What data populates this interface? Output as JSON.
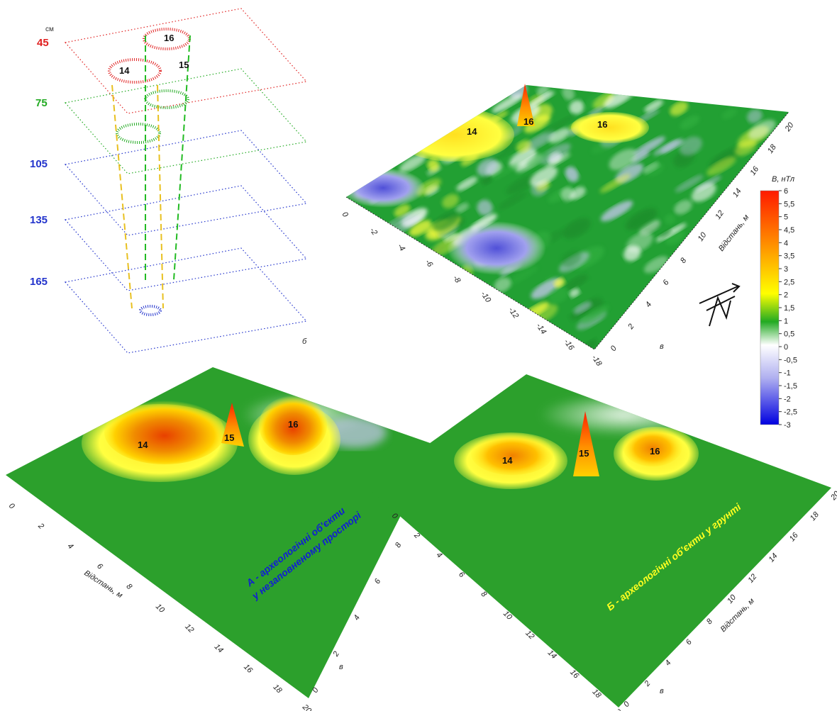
{
  "slices": {
    "unit": "см",
    "depths": [
      {
        "label": "45",
        "color": "#e02020"
      },
      {
        "label": "75",
        "color": "#22aa22"
      },
      {
        "label": "105",
        "color": "#2233cc"
      },
      {
        "label": "135",
        "color": "#2233cc"
      },
      {
        "label": "165",
        "color": "#2233cc"
      }
    ],
    "objects": [
      "14",
      "15",
      "16"
    ],
    "axis_letter": "б"
  },
  "field_surface": {
    "peaks": [
      "14",
      "16",
      "16"
    ],
    "x_ticks": [
      "0",
      "-2",
      "-4",
      "-6",
      "-8",
      "-10",
      "-12",
      "-14",
      "-16",
      "-18"
    ],
    "y_ticks": [
      "0",
      "2",
      "4",
      "6",
      "8",
      "10",
      "12",
      "14",
      "16",
      "18",
      "20"
    ],
    "y_axis_label": "Відстань, м",
    "axis_letter": "в"
  },
  "colorbar": {
    "title": "B, нТл",
    "ticks": [
      "6",
      "5,5",
      "5",
      "4,5",
      "4",
      "3,5",
      "3",
      "2,5",
      "2",
      "1,5",
      "1",
      "0,5",
      "0",
      "-0,5",
      "-1",
      "-1,5",
      "-2",
      "-2,5",
      "-3"
    ],
    "colors": [
      "#ff1a00",
      "#ff7a00",
      "#ffd000",
      "#ffff00",
      "#22aa22",
      "#ffffff",
      "#9a9af0",
      "#1010e0"
    ]
  },
  "model_a": {
    "peaks": [
      "14",
      "15",
      "16"
    ],
    "x_ticks": [
      "0",
      "2",
      "4",
      "6",
      "8",
      "10",
      "12",
      "14",
      "16",
      "18",
      "20"
    ],
    "y_ticks": [
      "0",
      "2",
      "4",
      "6",
      "8",
      "10"
    ],
    "x_axis_label": "Відстань, м",
    "axis_letter": "в",
    "caption_line1": "А - археологічні об'єкти",
    "caption_line2": "у незаповненому просторі"
  },
  "model_b": {
    "peaks": [
      "14",
      "15",
      "16"
    ],
    "x_ticks": [
      "0",
      "2",
      "4",
      "6",
      "8",
      "10",
      "12",
      "14",
      "16",
      "18",
      "20"
    ],
    "y_ticks": [
      "0",
      "2",
      "4",
      "6",
      "8",
      "10",
      "12",
      "14",
      "16",
      "18",
      "20"
    ],
    "y_axis_label": "Відстань, м",
    "axis_letter": "в",
    "caption": "Б - археологічні об'єкти у грунті"
  },
  "chart_data": [
    {
      "type": "other",
      "title": "",
      "depths_cm": [
        45,
        75,
        105,
        135,
        165
      ],
      "objects": [
        "14",
        "15",
        "16"
      ]
    },
    {
      "type": "heatmap",
      "title": "",
      "xlim": [
        -18,
        0
      ],
      "ylim": [
        0,
        20
      ],
      "zlabel": "B, нТл",
      "zlim": [
        -3,
        6
      ],
      "annotations": [
        "14",
        "16",
        "16"
      ]
    },
    {
      "type": "heatmap",
      "title": "А - археологічні об'єкти у незаповненому просторі",
      "xlabel": "Відстань, м",
      "xlim": [
        0,
        20
      ],
      "ylim": [
        0,
        10
      ],
      "annotations": [
        "14",
        "15",
        "16"
      ]
    },
    {
      "type": "heatmap",
      "title": "Б - археологічні об'єкти у грунті",
      "ylabel": "Відстань, м",
      "xlim": [
        0,
        20
      ],
      "ylim": [
        0,
        20
      ],
      "annotations": [
        "14",
        "15",
        "16"
      ]
    }
  ]
}
